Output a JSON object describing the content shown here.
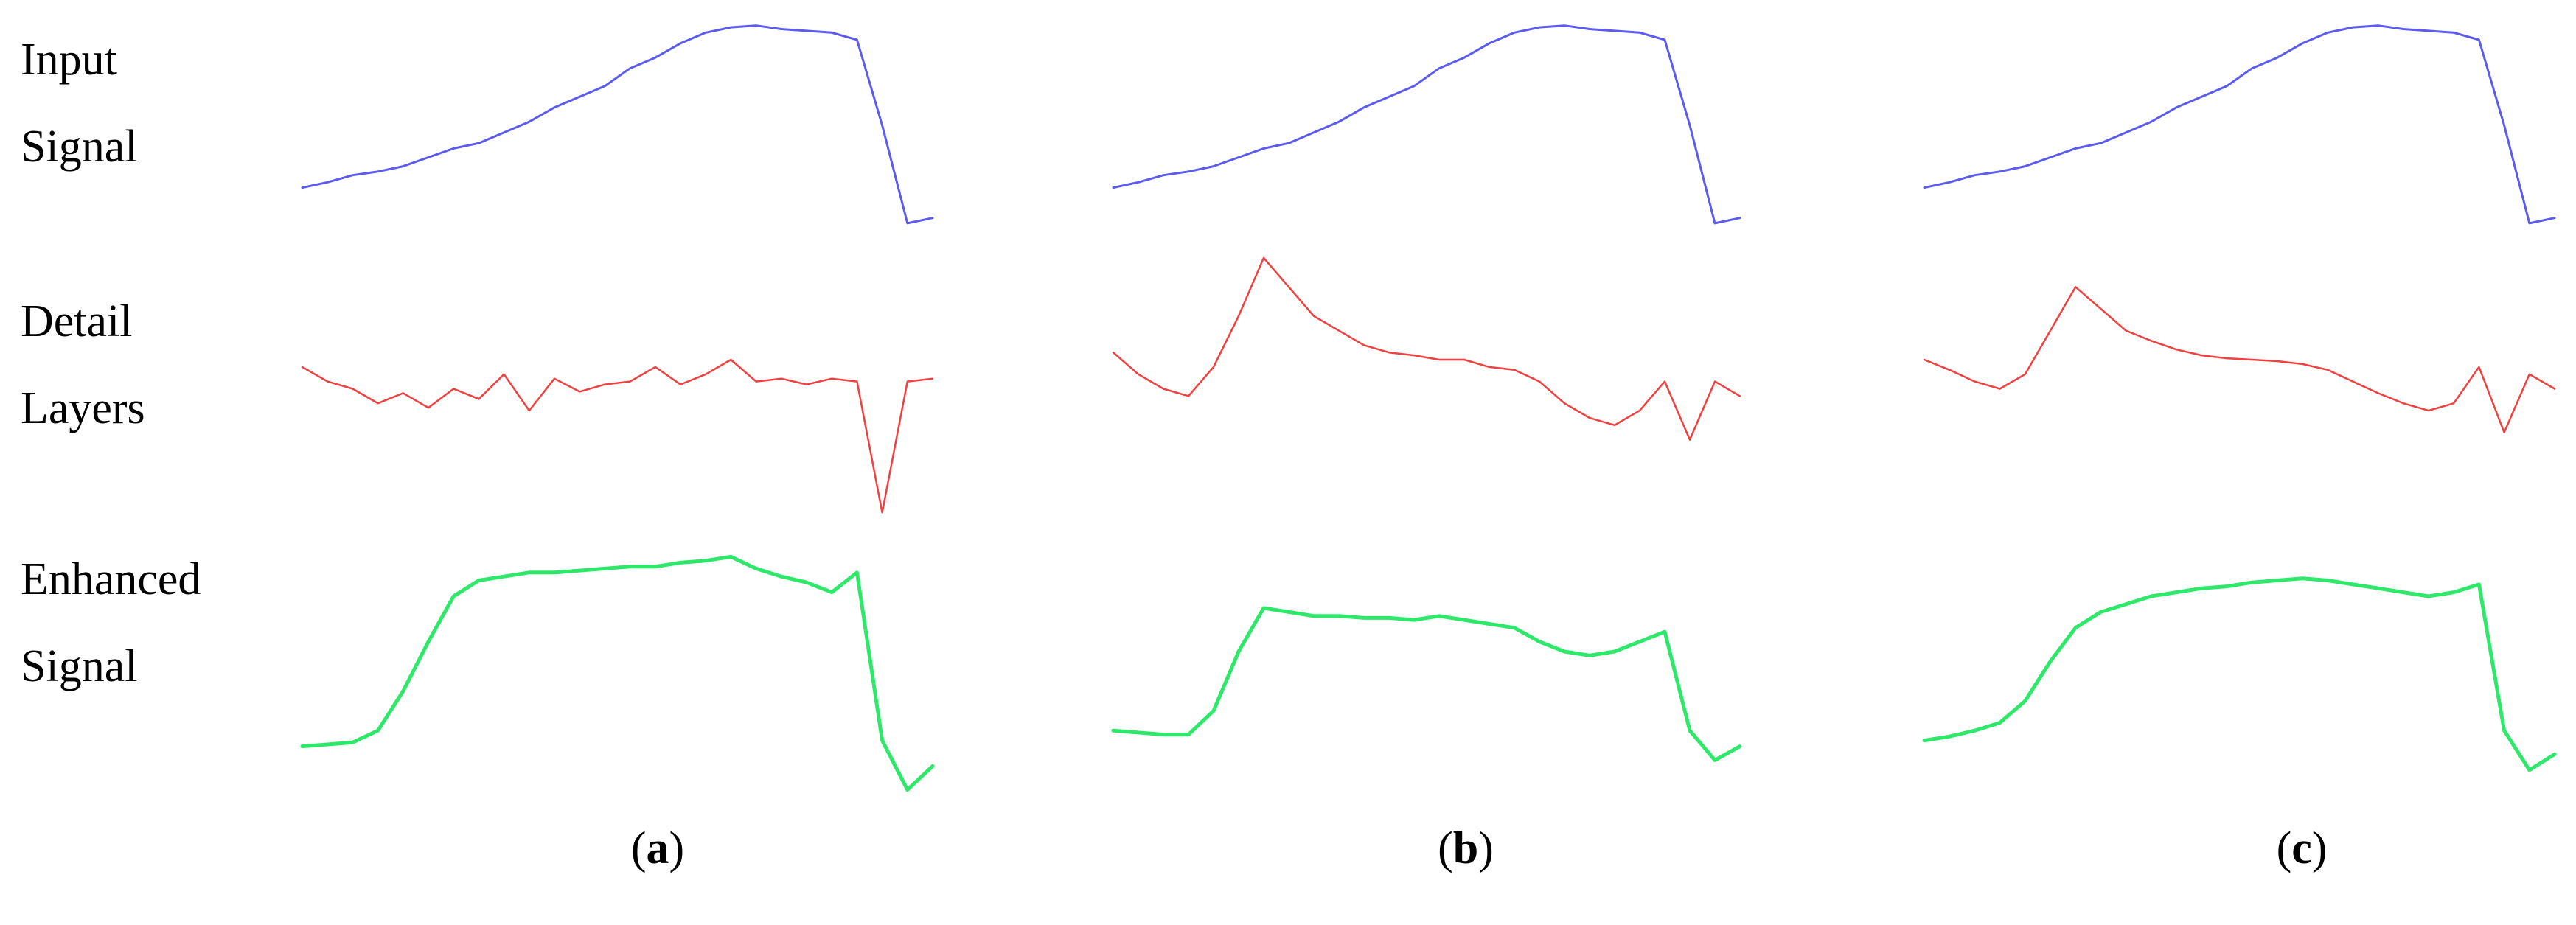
{
  "row_labels": {
    "input": [
      "Input",
      "Signal"
    ],
    "detail": [
      "Detail",
      "Layers"
    ],
    "enhanced": [
      "Enhanced",
      "Signal"
    ]
  },
  "panel_labels": [
    "a",
    "b",
    "c"
  ],
  "colors": {
    "input": "#5b5bf0",
    "detail": "#f04040",
    "enhanced": "#2ee86a"
  },
  "chart_data": [
    {
      "type": "line",
      "panel": "a",
      "x": [
        0,
        4,
        8,
        12,
        16,
        20,
        24,
        28,
        32,
        36,
        40,
        44,
        48,
        52,
        56,
        60,
        64,
        68,
        72,
        76,
        80,
        84,
        88,
        92,
        96,
        100
      ],
      "series": [
        {
          "values": [
            0.05,
            0.08,
            0.12,
            0.14,
            0.17,
            0.22,
            0.27,
            0.3,
            0.36,
            0.42,
            0.5,
            0.56,
            0.62,
            0.72,
            0.78,
            0.86,
            0.92,
            0.95,
            0.96,
            0.94,
            0.93,
            0.92,
            0.88,
            0.4,
            -0.15,
            -0.12
          ]
        },
        {
          "values": [
            0.2,
            0.1,
            0.05,
            -0.05,
            0.02,
            -0.08,
            0.05,
            -0.02,
            0.15,
            -0.1,
            0.12,
            0.03,
            0.08,
            0.1,
            0.2,
            0.08,
            0.15,
            0.25,
            0.1,
            0.12,
            0.08,
            0.12,
            0.1,
            -0.8,
            0.1,
            0.12
          ]
        },
        {
          "values": [
            0.02,
            0.03,
            0.04,
            0.1,
            0.3,
            0.55,
            0.78,
            0.86,
            0.88,
            0.9,
            0.9,
            0.91,
            0.92,
            0.93,
            0.93,
            0.95,
            0.96,
            0.98,
            0.92,
            0.88,
            0.85,
            0.8,
            0.9,
            0.05,
            -0.2,
            -0.08
          ]
        }
      ]
    },
    {
      "type": "line",
      "panel": "b",
      "x": [
        0,
        4,
        8,
        12,
        16,
        20,
        24,
        28,
        32,
        36,
        40,
        44,
        48,
        52,
        56,
        60,
        64,
        68,
        72,
        76,
        80,
        84,
        88,
        92,
        96,
        100
      ],
      "series": [
        {
          "values": [
            0.05,
            0.08,
            0.12,
            0.14,
            0.17,
            0.22,
            0.27,
            0.3,
            0.36,
            0.42,
            0.5,
            0.56,
            0.62,
            0.72,
            0.78,
            0.86,
            0.92,
            0.95,
            0.96,
            0.94,
            0.93,
            0.92,
            0.88,
            0.4,
            -0.15,
            -0.12
          ]
        },
        {
          "values": [
            0.3,
            0.15,
            0.05,
            0.0,
            0.2,
            0.55,
            0.95,
            0.75,
            0.55,
            0.45,
            0.35,
            0.3,
            0.28,
            0.25,
            0.25,
            0.2,
            0.18,
            0.1,
            -0.05,
            -0.15,
            -0.2,
            -0.1,
            0.1,
            -0.3,
            0.1,
            0.0
          ]
        },
        {
          "values": [
            0.1,
            0.09,
            0.08,
            0.08,
            0.2,
            0.5,
            0.72,
            0.7,
            0.68,
            0.68,
            0.67,
            0.67,
            0.66,
            0.68,
            0.66,
            0.64,
            0.62,
            0.55,
            0.5,
            0.48,
            0.5,
            0.55,
            0.6,
            0.1,
            -0.05,
            0.02
          ]
        }
      ]
    },
    {
      "type": "line",
      "panel": "c",
      "x": [
        0,
        4,
        8,
        12,
        16,
        20,
        24,
        28,
        32,
        36,
        40,
        44,
        48,
        52,
        56,
        60,
        64,
        68,
        72,
        76,
        80,
        84,
        88,
        92,
        96,
        100
      ],
      "series": [
        {
          "values": [
            0.05,
            0.08,
            0.12,
            0.14,
            0.17,
            0.22,
            0.27,
            0.3,
            0.36,
            0.42,
            0.5,
            0.56,
            0.62,
            0.72,
            0.78,
            0.86,
            0.92,
            0.95,
            0.96,
            0.94,
            0.93,
            0.92,
            0.88,
            0.4,
            -0.15,
            -0.12
          ]
        },
        {
          "values": [
            0.25,
            0.18,
            0.1,
            0.05,
            0.15,
            0.45,
            0.75,
            0.6,
            0.45,
            0.38,
            0.32,
            0.28,
            0.26,
            0.25,
            0.24,
            0.22,
            0.18,
            0.1,
            0.02,
            -0.05,
            -0.1,
            -0.05,
            0.2,
            -0.25,
            0.15,
            0.05
          ]
        },
        {
          "values": [
            0.05,
            0.07,
            0.1,
            0.14,
            0.25,
            0.45,
            0.62,
            0.7,
            0.74,
            0.78,
            0.8,
            0.82,
            0.83,
            0.85,
            0.86,
            0.87,
            0.86,
            0.84,
            0.82,
            0.8,
            0.78,
            0.8,
            0.84,
            0.1,
            -0.1,
            -0.02
          ]
        }
      ]
    }
  ]
}
